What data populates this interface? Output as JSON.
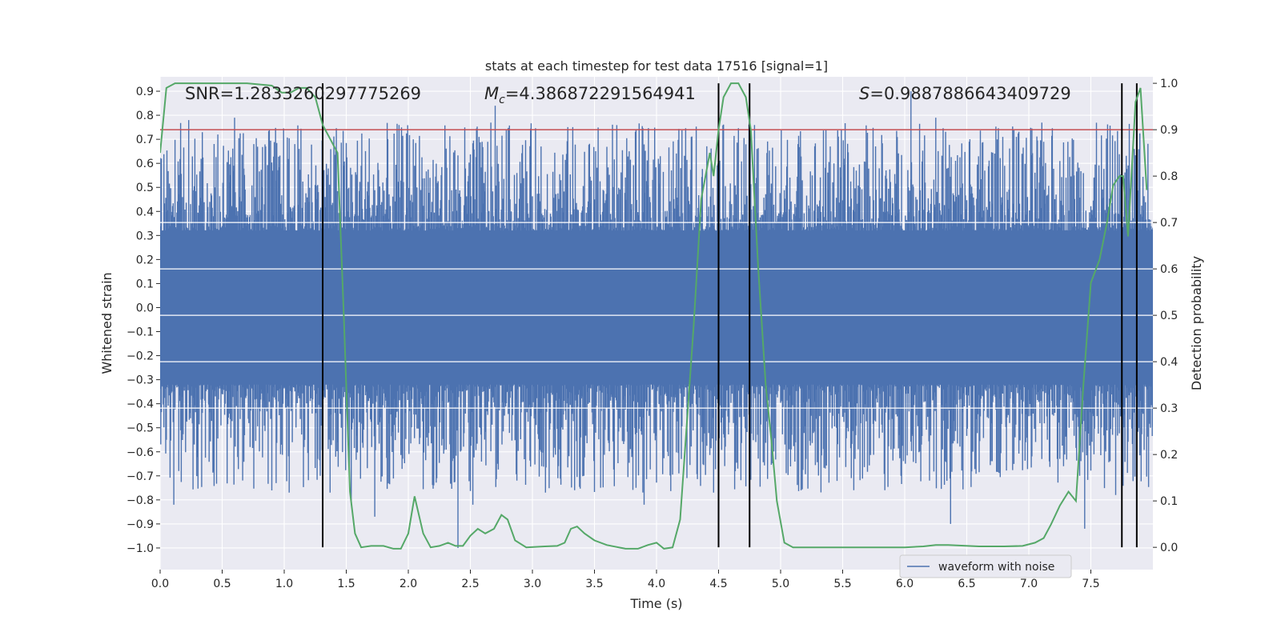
{
  "chart_data": {
    "type": "line",
    "title": "stats at each timestep for test data 17516 [signal=1]",
    "xlabel": "Time (s)",
    "ylabel": "Whitened strain",
    "y2label": "Detection probability",
    "xlim": [
      0.0,
      8.0
    ],
    "ylim": [
      -1.09,
      0.96
    ],
    "y2lim": [
      -0.048,
      1.014
    ],
    "xticks": [
      0.0,
      0.5,
      1.0,
      1.5,
      2.0,
      2.5,
      3.0,
      3.5,
      4.0,
      4.5,
      5.0,
      5.5,
      6.0,
      6.5,
      7.0,
      7.5
    ],
    "yticks": [
      -1.0,
      -0.9,
      -0.8,
      -0.7,
      -0.6,
      -0.5,
      -0.4,
      -0.3,
      -0.2,
      -0.1,
      0.0,
      0.1,
      0.2,
      0.3,
      0.4,
      0.5,
      0.6,
      0.7,
      0.8,
      0.9
    ],
    "y2ticks": [
      0.0,
      0.1,
      0.2,
      0.3,
      0.4,
      0.5,
      0.6,
      0.7,
      0.8,
      0.9,
      1.0
    ],
    "grid": true,
    "legend": {
      "position": "lower-right",
      "entries": [
        "waveform with noise"
      ]
    },
    "annotations": {
      "snr": "SNR=1.2833260297775269",
      "mc_symbol": "M",
      "mc_subscript": "c",
      "mc_value": "=4.386872291564941",
      "s_symbol": "S",
      "s_value": "=0.9887886643409729"
    },
    "threshold_line": {
      "axis": "y2",
      "value": 0.9,
      "color": "#c44e52"
    },
    "vertical_lines_x": [
      1.31,
      4.5,
      4.75,
      7.75,
      7.87
    ],
    "waveform": {
      "name": "waveform with noise",
      "color": "#4c72b0",
      "core_amplitude": 0.32,
      "spikes": [
        {
          "x": 0.05,
          "y": -0.55
        },
        {
          "x": 0.11,
          "y": -0.82
        },
        {
          "x": 0.15,
          "y": -0.68
        },
        {
          "x": 0.23,
          "y": 0.78
        },
        {
          "x": 0.43,
          "y": -0.68
        },
        {
          "x": 0.6,
          "y": 0.79
        },
        {
          "x": 0.85,
          "y": 0.67
        },
        {
          "x": 0.97,
          "y": -0.61
        },
        {
          "x": 1.04,
          "y": -0.77
        },
        {
          "x": 1.16,
          "y": -0.58
        },
        {
          "x": 1.29,
          "y": -0.7
        },
        {
          "x": 1.54,
          "y": -0.82
        },
        {
          "x": 1.62,
          "y": 0.59
        },
        {
          "x": 1.73,
          "y": -0.87
        },
        {
          "x": 1.78,
          "y": -0.67
        },
        {
          "x": 2.05,
          "y": 0.59
        },
        {
          "x": 2.4,
          "y": -1.0
        },
        {
          "x": 2.52,
          "y": -0.82
        },
        {
          "x": 2.57,
          "y": 0.71
        },
        {
          "x": 2.7,
          "y": 0.84
        },
        {
          "x": 3.07,
          "y": 0.67
        },
        {
          "x": 3.34,
          "y": -0.76
        },
        {
          "x": 3.9,
          "y": -0.82
        },
        {
          "x": 4.03,
          "y": 0.63
        },
        {
          "x": 4.18,
          "y": -0.69
        },
        {
          "x": 4.46,
          "y": -0.77
        },
        {
          "x": 4.89,
          "y": 0.61
        },
        {
          "x": 5.14,
          "y": 0.68
        },
        {
          "x": 5.4,
          "y": 0.67
        },
        {
          "x": 5.84,
          "y": -0.76
        },
        {
          "x": 5.97,
          "y": -0.7
        },
        {
          "x": 6.05,
          "y": 0.9
        },
        {
          "x": 6.2,
          "y": -0.72
        },
        {
          "x": 6.25,
          "y": 0.79
        },
        {
          "x": 6.37,
          "y": -0.9
        },
        {
          "x": 6.52,
          "y": 0.69
        },
        {
          "x": 6.79,
          "y": 0.71
        },
        {
          "x": 6.9,
          "y": 0.71
        },
        {
          "x": 7.25,
          "y": 0.61
        },
        {
          "x": 7.45,
          "y": -0.92
        },
        {
          "x": 7.7,
          "y": -0.78
        }
      ]
    },
    "series": [
      {
        "axis": "y2",
        "color": "#55a868",
        "x": [
          0.0,
          0.05,
          0.12,
          0.2,
          0.35,
          0.5,
          0.7,
          0.9,
          0.98,
          1.05,
          1.12,
          1.18,
          1.25,
          1.31,
          1.37,
          1.43,
          1.48,
          1.53,
          1.57,
          1.62,
          1.7,
          1.8,
          1.88,
          1.94,
          2.0,
          2.05,
          2.12,
          2.18,
          2.25,
          2.32,
          2.38,
          2.44,
          2.5,
          2.56,
          2.62,
          2.69,
          2.75,
          2.8,
          2.86,
          2.95,
          3.1,
          3.2,
          3.26,
          3.31,
          3.36,
          3.42,
          3.5,
          3.6,
          3.75,
          3.85,
          3.93,
          4.0,
          4.06,
          4.13,
          4.19,
          4.24,
          4.3,
          4.36,
          4.43,
          4.46,
          4.5,
          4.54,
          4.6,
          4.66,
          4.72,
          4.76,
          4.82,
          4.88,
          4.93,
          4.97,
          5.03,
          5.1,
          5.3,
          5.6,
          6.0,
          6.15,
          6.25,
          6.35,
          6.6,
          6.8,
          6.95,
          7.05,
          7.12,
          7.18,
          7.25,
          7.32,
          7.38,
          7.44,
          7.5,
          7.57,
          7.63,
          7.68,
          7.73,
          7.76,
          7.8,
          7.86,
          7.9,
          7.95
        ],
        "values": [
          0.85,
          0.99,
          1.0,
          1.0,
          1.0,
          1.0,
          1.0,
          0.995,
          0.98,
          0.98,
          0.99,
          0.99,
          0.97,
          0.91,
          0.88,
          0.85,
          0.5,
          0.12,
          0.03,
          0.0,
          0.003,
          0.003,
          -0.003,
          -0.003,
          0.03,
          0.11,
          0.03,
          0.0,
          0.003,
          0.01,
          0.003,
          0.003,
          0.025,
          0.04,
          0.03,
          0.04,
          0.07,
          0.06,
          0.015,
          0.0,
          0.002,
          0.003,
          0.01,
          0.04,
          0.045,
          0.03,
          0.015,
          0.005,
          -0.003,
          -0.003,
          0.005,
          0.01,
          -0.003,
          0.0,
          0.06,
          0.25,
          0.48,
          0.75,
          0.85,
          0.8,
          0.9,
          0.97,
          1.0,
          1.0,
          0.97,
          0.9,
          0.6,
          0.35,
          0.22,
          0.1,
          0.01,
          0.0,
          0.0,
          0.0,
          0.0,
          0.002,
          0.005,
          0.005,
          0.002,
          0.002,
          0.003,
          0.01,
          0.02,
          0.05,
          0.09,
          0.12,
          0.1,
          0.35,
          0.57,
          0.62,
          0.7,
          0.78,
          0.8,
          0.8,
          0.67,
          0.96,
          0.99,
          0.77
        ]
      }
    ]
  }
}
